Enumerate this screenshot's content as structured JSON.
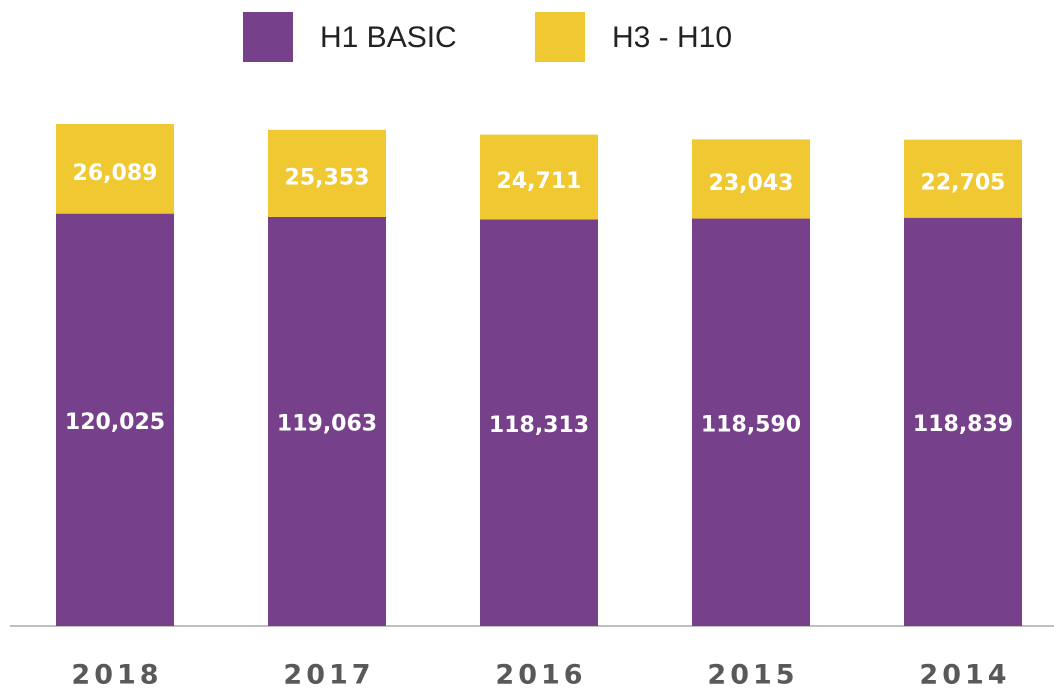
{
  "chart_data": {
    "type": "stacked_bar",
    "categories": [
      "2018",
      "2017",
      "2016",
      "2015",
      "2014"
    ],
    "series": [
      {
        "name": "H1 BASIC",
        "color": "#76418a",
        "values": [
          120025,
          119063,
          118313,
          118590,
          118839
        ],
        "value_labels": [
          "120,025",
          "119,063",
          "118,313",
          "118,590",
          "118,839"
        ]
      },
      {
        "name": "H3 - H10",
        "color": "#f0c832",
        "values": [
          26089,
          25353,
          24711,
          23043,
          22705
        ],
        "value_labels": [
          "26,089",
          "25,353",
          "24,711",
          "23,043",
          "22,705"
        ]
      }
    ],
    "legend": "top"
  }
}
